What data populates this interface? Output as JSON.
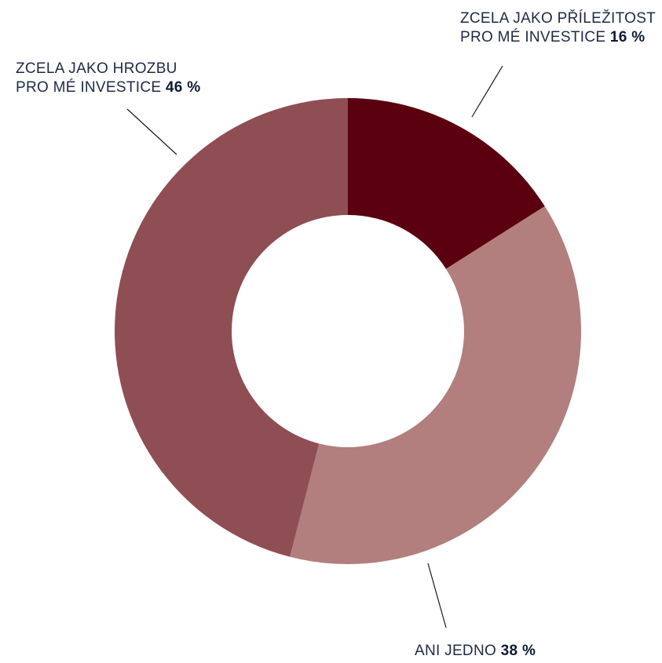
{
  "chart_data": {
    "type": "pie",
    "variant": "donut",
    "title": "",
    "slices": [
      {
        "label_line1": "ZCELA JAKO PŘÍLEŽITOST",
        "label_line2": "PRO MÉ INVESTICE",
        "value": 16,
        "value_text": "16 %",
        "color": "#5a000f"
      },
      {
        "label_line1": "ANI JEDNO",
        "label_line2": "",
        "value": 38,
        "value_text": "38 %",
        "color": "#b27e7e"
      },
      {
        "label_line1": "ZCELA JAKO HROZBU",
        "label_line2": "PRO MÉ INVESTICE",
        "value": 46,
        "value_text": "46 %",
        "color": "#8f4e54"
      }
    ]
  }
}
